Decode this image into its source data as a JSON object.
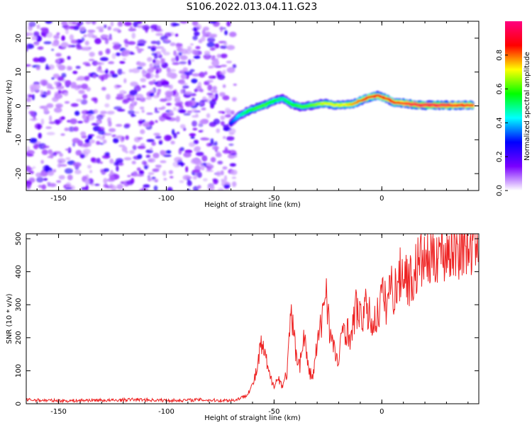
{
  "title": "S106.2022.013.04.11.G23",
  "chart_data": [
    {
      "type": "heatmap",
      "xlabel": "Height of straight line (km)",
      "ylabel": "Frequency (Hz)",
      "xlim": [
        -165,
        45
      ],
      "ylim": [
        -25,
        25
      ],
      "x_ticks": [
        -150,
        -100,
        -50,
        0
      ],
      "y_ticks": [
        -20,
        -10,
        0,
        10,
        20
      ],
      "x_tick_labels": [
        "-150",
        "-100",
        "-50",
        "0"
      ],
      "y_tick_labels": [
        "-20",
        "-10",
        "0",
        "10",
        "20"
      ],
      "noise_region_x": [
        -165,
        -68
      ],
      "ridge": {
        "x": [
          -70,
          -66,
          -62,
          -58,
          -54,
          -50,
          -46,
          -42,
          -38,
          -34,
          -30,
          -26,
          -22,
          -18,
          -14,
          -10,
          -6,
          -2,
          2,
          6,
          10,
          14,
          18,
          22,
          26,
          30,
          34,
          38,
          42
        ],
        "y": [
          -5,
          -2.8,
          -1.5,
          -0.5,
          0.3,
          1.5,
          2.2,
          0.5,
          -0.2,
          0,
          0.5,
          0.8,
          0.2,
          0.3,
          0.5,
          1.5,
          2.5,
          3,
          2.2,
          1,
          0.8,
          0.5,
          0.2,
          0.2,
          0.2,
          0.2,
          0.2,
          0.2,
          0.2
        ],
        "amplitude": [
          0.3,
          0.45,
          0.55,
          0.6,
          0.6,
          0.55,
          0.5,
          0.55,
          0.6,
          0.6,
          0.65,
          0.7,
          0.7,
          0.7,
          0.75,
          0.8,
          0.85,
          0.85,
          0.85,
          0.85,
          0.9,
          0.95,
          0.95,
          0.95,
          0.95,
          0.95,
          0.9,
          0.9,
          0.9
        ]
      },
      "colorbar": {
        "label": "Normalized spectral amplitude",
        "ticks": [
          0.0,
          0.2,
          0.4,
          0.6,
          0.8
        ],
        "tick_labels": [
          "0.0",
          "0.2",
          "0.4",
          "0.6",
          "0.8"
        ],
        "range": [
          0,
          1
        ],
        "colormap": [
          "#ffffff",
          "#7a00ff",
          "#0000ff",
          "#00ffff",
          "#00ff00",
          "#ffff00",
          "#ff0000",
          "#ff0080"
        ]
      }
    },
    {
      "type": "line",
      "xlabel": "Height of straight line (km)",
      "ylabel": "SNR (10 * v/v)",
      "xlim": [
        -165,
        45
      ],
      "ylim": [
        0,
        515
      ],
      "x_ticks": [
        -150,
        -100,
        -50,
        0
      ],
      "y_ticks": [
        0,
        100,
        200,
        300,
        400,
        500
      ],
      "x_tick_labels": [
        "-150",
        "-100",
        "-50",
        "0"
      ],
      "y_tick_labels": [
        "0",
        "100",
        "200",
        "300",
        "400",
        "500"
      ],
      "color": "#ee2222",
      "x": [
        -165,
        -155,
        -145,
        -135,
        -125,
        -115,
        -105,
        -95,
        -85,
        -75,
        -68,
        -63,
        -60,
        -58,
        -56,
        -54,
        -52,
        -50,
        -48,
        -46,
        -44,
        -42,
        -40,
        -38,
        -36,
        -34,
        -32,
        -30,
        -28,
        -26,
        -24,
        -22,
        -20,
        -18,
        -16,
        -14,
        -12,
        -10,
        -8,
        -6,
        -4,
        -2,
        0,
        2,
        4,
        6,
        8,
        10,
        12,
        14,
        16,
        18,
        20,
        22,
        24,
        26,
        28,
        30,
        32,
        34,
        36,
        38,
        40,
        42,
        45
      ],
      "y": [
        12,
        10,
        9,
        11,
        10,
        13,
        11,
        10,
        12,
        10,
        11,
        25,
        55,
        100,
        180,
        140,
        80,
        60,
        75,
        55,
        95,
        270,
        160,
        120,
        210,
        100,
        80,
        180,
        240,
        370,
        210,
        160,
        120,
        240,
        220,
        200,
        300,
        250,
        290,
        270,
        240,
        270,
        330,
        300,
        360,
        340,
        380,
        410,
        380,
        370,
        410,
        440,
        430,
        440,
        450,
        470,
        460,
        460,
        480,
        470,
        480,
        490,
        490,
        485,
        500
      ]
    }
  ]
}
